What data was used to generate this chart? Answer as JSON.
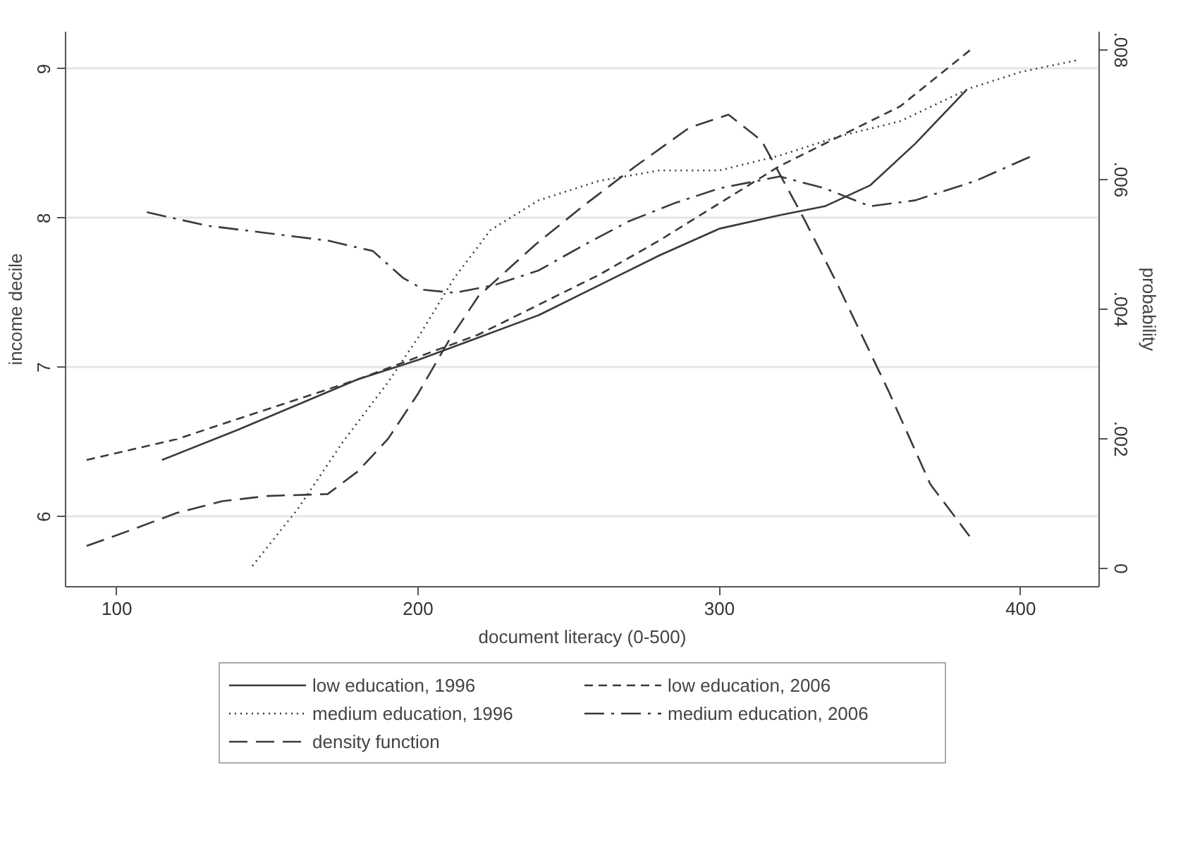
{
  "chart_data": {
    "type": "line",
    "xlabel": "document literacy (0-500)",
    "ylabel": "income decile",
    "y2label": "probability",
    "xlim": [
      83,
      426
    ],
    "xticks": [
      100,
      200,
      300,
      400
    ],
    "ylim": [
      5.53,
      9.25
    ],
    "yticks": [
      6,
      7,
      8,
      9
    ],
    "y2lim": [
      -0.00028,
      0.00828
    ],
    "y2ticks": [
      0,
      {
        "value": 0.002,
        "label": ".002"
      },
      {
        "value": 0.004,
        "label": ".004"
      },
      {
        "value": 0.006,
        "label": ".006"
      },
      {
        "value": 0.008,
        "label": ".008"
      }
    ],
    "grid": "y",
    "legend": "bottom",
    "marker": "none",
    "series": [
      {
        "name": "low education, 1996",
        "color": "#3a3a3a",
        "line_style": "solid",
        "x": [
          115,
          140,
          160,
          180,
          200,
          220,
          240,
          260,
          280,
          300,
          320,
          335,
          350,
          365,
          382
        ],
        "values": [
          6.38,
          6.58,
          6.75,
          6.92,
          7.05,
          7.2,
          7.35,
          7.55,
          7.75,
          7.93,
          8.02,
          8.08,
          8.22,
          8.5,
          8.86
        ]
      },
      {
        "name": "low education, 2006",
        "color": "#3a3a3a",
        "line_style": "dashed",
        "x": [
          90,
          120,
          150,
          180,
          200,
          220,
          240,
          260,
          280,
          300,
          320,
          340,
          360,
          384
        ],
        "values": [
          6.38,
          6.52,
          6.72,
          6.92,
          7.07,
          7.22,
          7.42,
          7.62,
          7.85,
          8.1,
          8.35,
          8.55,
          8.75,
          9.14
        ]
      },
      {
        "name": "medium education, 1996",
        "color": "#3a3a3a",
        "line_style": "dotted",
        "x": [
          145,
          160,
          175,
          190,
          200,
          212,
          224,
          240,
          260,
          280,
          300,
          320,
          340,
          360,
          383,
          400,
          419
        ],
        "values": [
          5.67,
          6.05,
          6.5,
          6.9,
          7.2,
          7.6,
          7.92,
          8.12,
          8.25,
          8.32,
          8.32,
          8.42,
          8.55,
          8.65,
          8.87,
          8.98,
          9.06
        ]
      },
      {
        "name": "medium education, 2006",
        "color": "#3a3a3a",
        "line_style": "dashdot",
        "x": [
          110,
          130,
          150,
          170,
          185,
          195,
          202,
          212,
          225,
          240,
          255,
          270,
          285,
          300,
          320,
          335,
          350,
          365,
          385,
          404
        ],
        "values": [
          8.04,
          7.95,
          7.9,
          7.85,
          7.78,
          7.6,
          7.52,
          7.5,
          7.55,
          7.65,
          7.82,
          7.98,
          8.1,
          8.2,
          8.28,
          8.2,
          8.08,
          8.12,
          8.25,
          8.42
        ]
      },
      {
        "name": "density function",
        "color": "#3a3a3a",
        "line_style": "longdash",
        "axis": "y2",
        "x": [
          90,
          105,
          120,
          135,
          150,
          170,
          180,
          190,
          200,
          210,
          220,
          239,
          255,
          272,
          290,
          303,
          314,
          328,
          339,
          356,
          370,
          383
        ],
        "values": [
          0.00035,
          0.0006,
          0.00086,
          0.00104,
          0.00112,
          0.00115,
          0.0015,
          0.002,
          0.0027,
          0.0035,
          0.0042,
          0.005,
          0.0056,
          0.0062,
          0.0068,
          0.007,
          0.0066,
          0.0054,
          0.0044,
          0.00275,
          0.0013,
          0.0005
        ]
      }
    ]
  }
}
